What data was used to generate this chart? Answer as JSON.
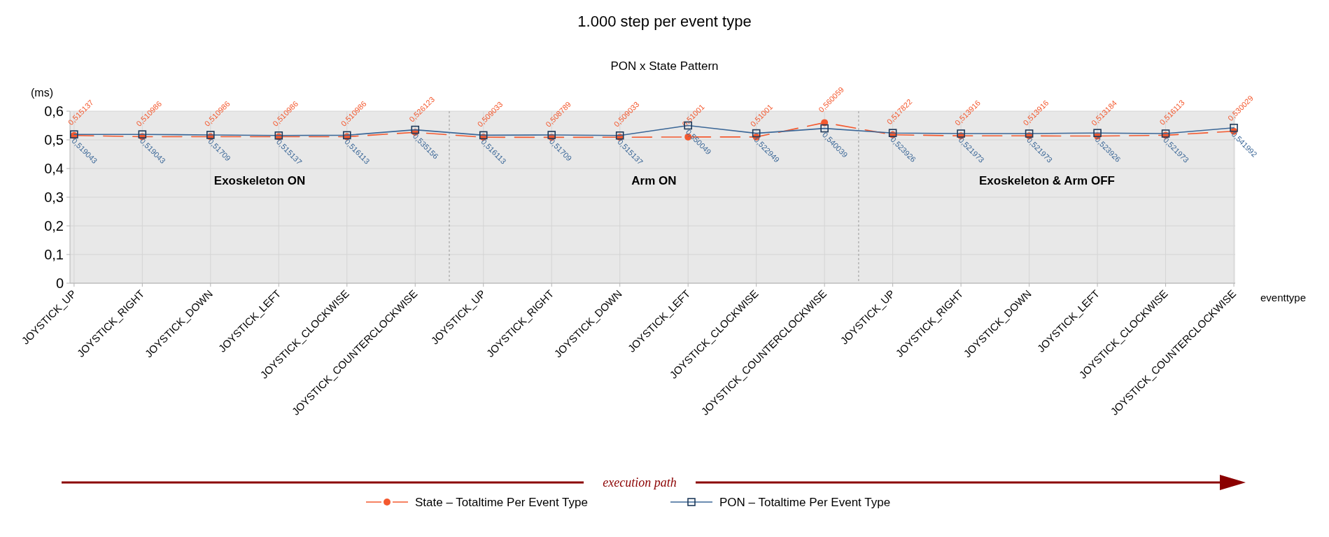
{
  "chart_data": {
    "type": "line",
    "title": "1.000 step per event type",
    "subtitle": "PON x State Pattern",
    "xlabel": "eventtype",
    "ylabel": "(ms)",
    "categories": [
      "JOYSTICK_UP",
      "JOYSTICK_RIGHT",
      "JOYSTICK_DOWN",
      "JOYSTICK_LEFT",
      "JOYSTICK_CLOCKWISE",
      "JOYSTICK_COUNTERCLOCKWISE",
      "JOYSTICK_UP",
      "JOYSTICK_RIGHT",
      "JOYSTICK_DOWN",
      "JOYSTICK_LEFT",
      "JOYSTICK_CLOCKWISE",
      "JOYSTICK_COUNTERCLOCKWISE",
      "JOYSTICK_UP",
      "JOYSTICK_RIGHT",
      "JOYSTICK_DOWN",
      "JOYSTICK_LEFT",
      "JOYSTICK_CLOCKWISE",
      "JOYSTICK_COUNTERCLOCKWISE"
    ],
    "series": [
      {
        "name": "State – Totaltime Per Event Type",
        "color": "#f4592f",
        "marker": "circle",
        "line_style": "dashed",
        "values": [
          0.515137,
          0.510986,
          0.510986,
          0.510986,
          0.510986,
          0.526123,
          0.509033,
          0.508789,
          0.509033,
          0.51001,
          0.51001,
          0.560059,
          0.517822,
          0.513916,
          0.513916,
          0.513184,
          0.516113,
          0.530029
        ],
        "value_labels": [
          "0,515137",
          "0,510986",
          "0,510986",
          "0,510986",
          "0,510986",
          "0,526123",
          "0,509033",
          "0,508789",
          "0,509033",
          "0,51001",
          "0,51001",
          "0,560059",
          "0,517822",
          "0,513916",
          "0,513916",
          "0,513184",
          "0,516113",
          "0,530029"
        ]
      },
      {
        "name": "PON – Totaltime Per Event Type",
        "color": "#3b6797",
        "marker": "square",
        "line_style": "solid",
        "values": [
          0.519043,
          0.519043,
          0.51709,
          0.515137,
          0.516113,
          0.535156,
          0.516113,
          0.51709,
          0.515137,
          0.550049,
          0.522949,
          0.540039,
          0.523926,
          0.521973,
          0.521973,
          0.523926,
          0.521973,
          0.541992
        ],
        "value_labels": [
          "0,519043",
          "0,519043",
          "0,51709",
          "0,515137",
          "0,516113",
          "0,535156",
          "0,516113",
          "0,51709",
          "0,515137",
          "0,550049",
          "0,522949",
          "0,540039",
          "0,523926",
          "0,521973",
          "0,521973",
          "0,523926",
          "0,521973",
          "0,541992"
        ]
      }
    ],
    "ylim": [
      0,
      0.6
    ],
    "yticks": [
      {
        "value": 0,
        "label": "0"
      },
      {
        "value": 0.1,
        "label": "0,1"
      },
      {
        "value": 0.2,
        "label": "0,2"
      },
      {
        "value": 0.3,
        "label": "0,3"
      },
      {
        "value": 0.4,
        "label": "0,4"
      },
      {
        "value": 0.5,
        "label": "0,5"
      },
      {
        "value": 0.6,
        "label": "0,6"
      }
    ],
    "grid": true,
    "legend": "bottom",
    "annotations": [
      "Exoskeleton ON",
      "Arm ON",
      "Exoskeleton & Arm OFF",
      "execution path"
    ]
  }
}
